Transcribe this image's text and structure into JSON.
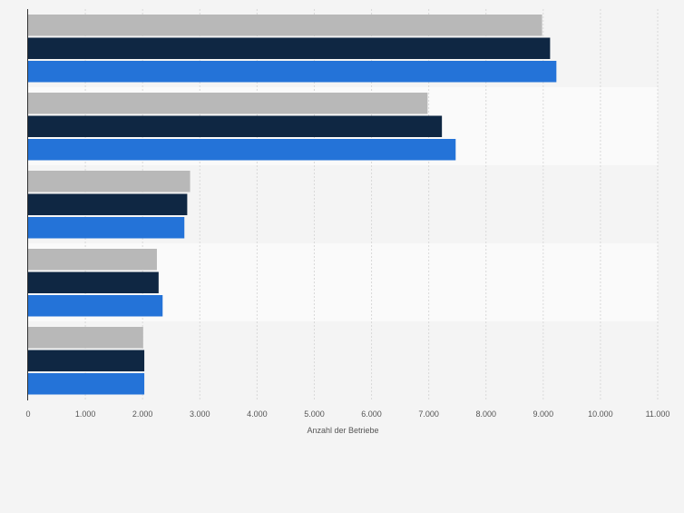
{
  "chart_data": {
    "type": "bar",
    "orientation": "horizontal",
    "xlabel": "Anzahl der Betriebe",
    "ylabel": "",
    "xlim": [
      0,
      11000
    ],
    "x_ticks": [
      0,
      1000,
      2000,
      3000,
      4000,
      5000,
      6000,
      7000,
      8000,
      9000,
      10000,
      11000
    ],
    "x_tick_labels": [
      "0",
      "1.000",
      "2.000",
      "3.000",
      "4.000",
      "5.000",
      "6.000",
      "7.000",
      "8.000",
      "9.000",
      "10.000",
      "11.000"
    ],
    "grid": true,
    "categories": [
      "",
      "",
      "",
      "",
      ""
    ],
    "series": [
      {
        "values": [
          8980,
          6980,
          2830,
          2250,
          2010
        ],
        "color": "#b8b8b8"
      },
      {
        "values": [
          9120,
          7230,
          2780,
          2280,
          2030
        ],
        "color": "#0f2743"
      },
      {
        "values": [
          9230,
          7470,
          2730,
          2350,
          2030
        ],
        "color": "#2473d8"
      }
    ],
    "band_colors": [
      "#f4f4f4",
      "#fafafa"
    ],
    "axis_color": "#333333",
    "grid_color": "#d9d9d9"
  }
}
